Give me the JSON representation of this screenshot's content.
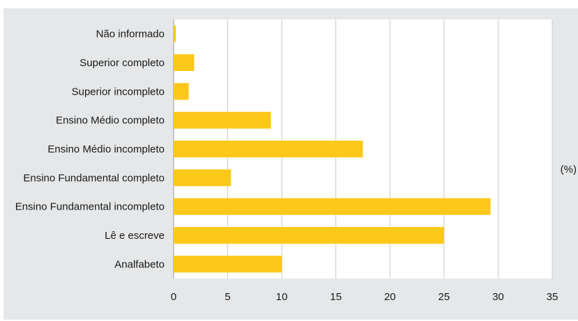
{
  "chart_data": {
    "type": "bar",
    "orientation": "horizontal",
    "title": "",
    "xlabel": "",
    "ylabel": "",
    "unit_label": "(%)",
    "categories": [
      "Não informado",
      "Superior completo",
      "Superior incompleto",
      "Ensino Médio completo",
      "Ensino Médio incompleto",
      "Ensino Fundamental completo",
      "Ensino Fundamental incompleto",
      "Lê e escreve",
      "Analfabeto"
    ],
    "values": [
      0.2,
      1.9,
      1.4,
      9.0,
      17.5,
      5.3,
      29.3,
      25.0,
      10.0
    ],
    "xlim": [
      0,
      35
    ],
    "xticks": [
      0,
      5,
      10,
      15,
      20,
      25,
      30,
      35
    ],
    "xtick_labels": [
      "0",
      "5",
      "10",
      "15",
      "20",
      "25",
      "30",
      "35"
    ],
    "grid": true,
    "bar_color": "#fcc81a",
    "background_color": "#e6e7e8",
    "plot_color": "#ffffff"
  }
}
